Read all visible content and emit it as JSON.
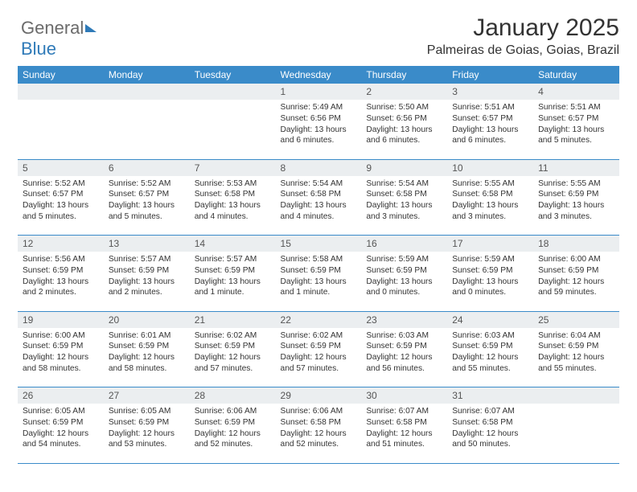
{
  "logo": {
    "part1": "General",
    "part2": "Blue"
  },
  "title": "January 2025",
  "location": "Palmeiras de Goias, Goias, Brazil",
  "colors": {
    "header_bg": "#3a8bc9",
    "header_text": "#ffffff",
    "daynum_bg": "#ebeef0",
    "rule": "#3a8bc9",
    "logo_gray": "#6b6b6b",
    "logo_blue": "#2f7ab8",
    "text": "#333333",
    "background": "#ffffff"
  },
  "layout": {
    "columns": 7,
    "weeks": 5,
    "title_fontsize_pt": 22,
    "location_fontsize_pt": 12,
    "header_fontsize_pt": 9,
    "daynum_fontsize_pt": 9,
    "cell_fontsize_pt": 7.5
  },
  "weekdays": [
    "Sunday",
    "Monday",
    "Tuesday",
    "Wednesday",
    "Thursday",
    "Friday",
    "Saturday"
  ],
  "weeks": [
    [
      null,
      null,
      null,
      {
        "n": "1",
        "sr": "Sunrise: 5:49 AM",
        "ss": "Sunset: 6:56 PM",
        "dl": "Daylight: 13 hours and 6 minutes."
      },
      {
        "n": "2",
        "sr": "Sunrise: 5:50 AM",
        "ss": "Sunset: 6:56 PM",
        "dl": "Daylight: 13 hours and 6 minutes."
      },
      {
        "n": "3",
        "sr": "Sunrise: 5:51 AM",
        "ss": "Sunset: 6:57 PM",
        "dl": "Daylight: 13 hours and 6 minutes."
      },
      {
        "n": "4",
        "sr": "Sunrise: 5:51 AM",
        "ss": "Sunset: 6:57 PM",
        "dl": "Daylight: 13 hours and 5 minutes."
      }
    ],
    [
      {
        "n": "5",
        "sr": "Sunrise: 5:52 AM",
        "ss": "Sunset: 6:57 PM",
        "dl": "Daylight: 13 hours and 5 minutes."
      },
      {
        "n": "6",
        "sr": "Sunrise: 5:52 AM",
        "ss": "Sunset: 6:57 PM",
        "dl": "Daylight: 13 hours and 5 minutes."
      },
      {
        "n": "7",
        "sr": "Sunrise: 5:53 AM",
        "ss": "Sunset: 6:58 PM",
        "dl": "Daylight: 13 hours and 4 minutes."
      },
      {
        "n": "8",
        "sr": "Sunrise: 5:54 AM",
        "ss": "Sunset: 6:58 PM",
        "dl": "Daylight: 13 hours and 4 minutes."
      },
      {
        "n": "9",
        "sr": "Sunrise: 5:54 AM",
        "ss": "Sunset: 6:58 PM",
        "dl": "Daylight: 13 hours and 3 minutes."
      },
      {
        "n": "10",
        "sr": "Sunrise: 5:55 AM",
        "ss": "Sunset: 6:58 PM",
        "dl": "Daylight: 13 hours and 3 minutes."
      },
      {
        "n": "11",
        "sr": "Sunrise: 5:55 AM",
        "ss": "Sunset: 6:59 PM",
        "dl": "Daylight: 13 hours and 3 minutes."
      }
    ],
    [
      {
        "n": "12",
        "sr": "Sunrise: 5:56 AM",
        "ss": "Sunset: 6:59 PM",
        "dl": "Daylight: 13 hours and 2 minutes."
      },
      {
        "n": "13",
        "sr": "Sunrise: 5:57 AM",
        "ss": "Sunset: 6:59 PM",
        "dl": "Daylight: 13 hours and 2 minutes."
      },
      {
        "n": "14",
        "sr": "Sunrise: 5:57 AM",
        "ss": "Sunset: 6:59 PM",
        "dl": "Daylight: 13 hours and 1 minute."
      },
      {
        "n": "15",
        "sr": "Sunrise: 5:58 AM",
        "ss": "Sunset: 6:59 PM",
        "dl": "Daylight: 13 hours and 1 minute."
      },
      {
        "n": "16",
        "sr": "Sunrise: 5:59 AM",
        "ss": "Sunset: 6:59 PM",
        "dl": "Daylight: 13 hours and 0 minutes."
      },
      {
        "n": "17",
        "sr": "Sunrise: 5:59 AM",
        "ss": "Sunset: 6:59 PM",
        "dl": "Daylight: 13 hours and 0 minutes."
      },
      {
        "n": "18",
        "sr": "Sunrise: 6:00 AM",
        "ss": "Sunset: 6:59 PM",
        "dl": "Daylight: 12 hours and 59 minutes."
      }
    ],
    [
      {
        "n": "19",
        "sr": "Sunrise: 6:00 AM",
        "ss": "Sunset: 6:59 PM",
        "dl": "Daylight: 12 hours and 58 minutes."
      },
      {
        "n": "20",
        "sr": "Sunrise: 6:01 AM",
        "ss": "Sunset: 6:59 PM",
        "dl": "Daylight: 12 hours and 58 minutes."
      },
      {
        "n": "21",
        "sr": "Sunrise: 6:02 AM",
        "ss": "Sunset: 6:59 PM",
        "dl": "Daylight: 12 hours and 57 minutes."
      },
      {
        "n": "22",
        "sr": "Sunrise: 6:02 AM",
        "ss": "Sunset: 6:59 PM",
        "dl": "Daylight: 12 hours and 57 minutes."
      },
      {
        "n": "23",
        "sr": "Sunrise: 6:03 AM",
        "ss": "Sunset: 6:59 PM",
        "dl": "Daylight: 12 hours and 56 minutes."
      },
      {
        "n": "24",
        "sr": "Sunrise: 6:03 AM",
        "ss": "Sunset: 6:59 PM",
        "dl": "Daylight: 12 hours and 55 minutes."
      },
      {
        "n": "25",
        "sr": "Sunrise: 6:04 AM",
        "ss": "Sunset: 6:59 PM",
        "dl": "Daylight: 12 hours and 55 minutes."
      }
    ],
    [
      {
        "n": "26",
        "sr": "Sunrise: 6:05 AM",
        "ss": "Sunset: 6:59 PM",
        "dl": "Daylight: 12 hours and 54 minutes."
      },
      {
        "n": "27",
        "sr": "Sunrise: 6:05 AM",
        "ss": "Sunset: 6:59 PM",
        "dl": "Daylight: 12 hours and 53 minutes."
      },
      {
        "n": "28",
        "sr": "Sunrise: 6:06 AM",
        "ss": "Sunset: 6:59 PM",
        "dl": "Daylight: 12 hours and 52 minutes."
      },
      {
        "n": "29",
        "sr": "Sunrise: 6:06 AM",
        "ss": "Sunset: 6:58 PM",
        "dl": "Daylight: 12 hours and 52 minutes."
      },
      {
        "n": "30",
        "sr": "Sunrise: 6:07 AM",
        "ss": "Sunset: 6:58 PM",
        "dl": "Daylight: 12 hours and 51 minutes."
      },
      {
        "n": "31",
        "sr": "Sunrise: 6:07 AM",
        "ss": "Sunset: 6:58 PM",
        "dl": "Daylight: 12 hours and 50 minutes."
      },
      null
    ]
  ]
}
